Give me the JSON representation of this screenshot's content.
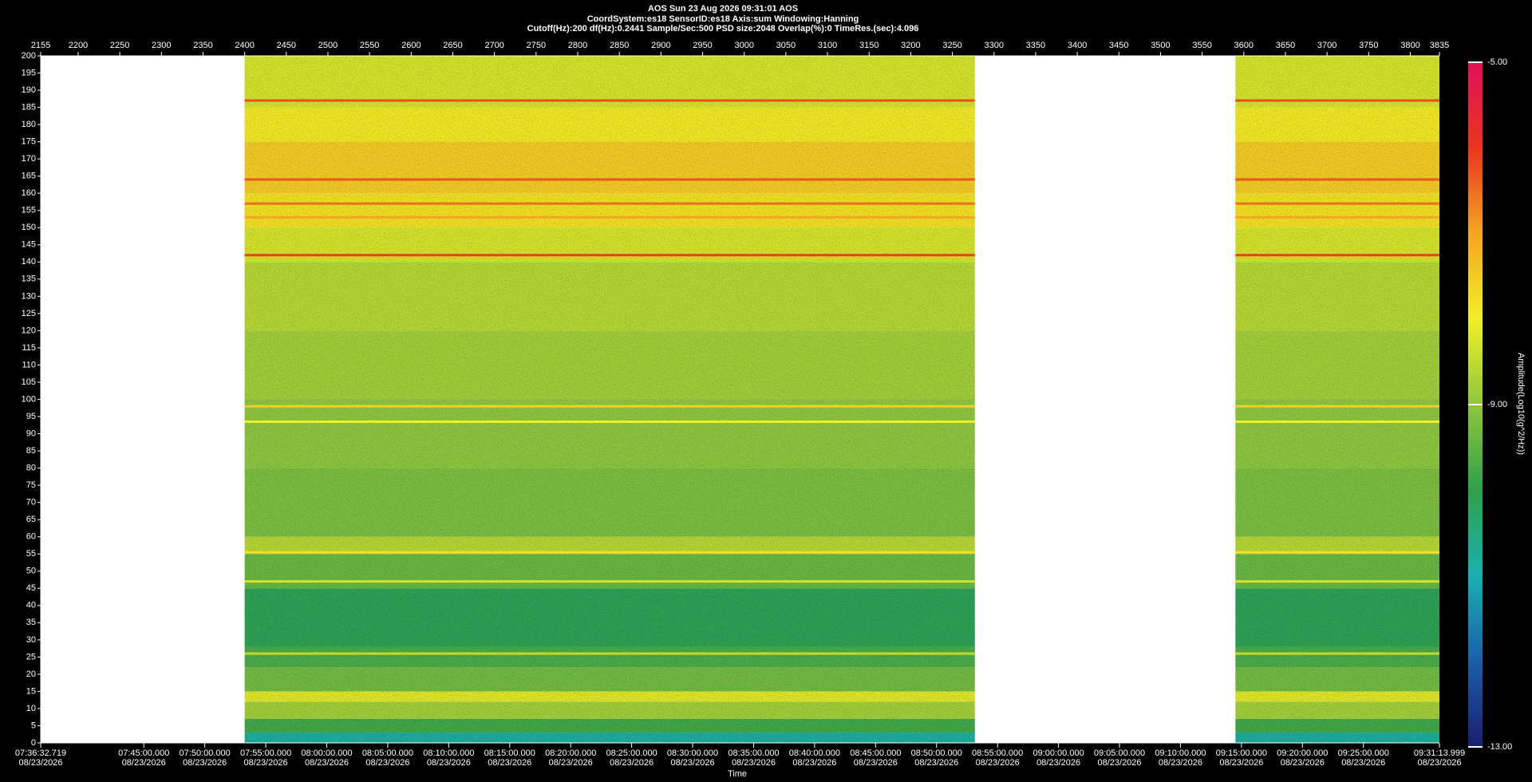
{
  "chart_data": {
    "type": "spectrogram",
    "title_lines": [
      "AOS  Sun 23 Aug 2026 09:31:01  AOS",
      "CoordSystem:es18   SensorID:es18   Axis:sum   Windowing:Hanning",
      "Cutoff(Hz):200     df(Hz):0.2441     Sample/Sec:500     PSD size:2048     Overlap(%):0     TimeRes.(sec):4.096"
    ],
    "xlabel": "Time",
    "colorbar_label": "Amplitude(Log10(g^2/Hz))",
    "xlim": [
      2155,
      3835
    ],
    "xticks": [
      2155,
      2200,
      2250,
      2300,
      2350,
      2400,
      2450,
      2500,
      2550,
      2600,
      2650,
      2700,
      2750,
      2800,
      2850,
      2900,
      2950,
      3000,
      3050,
      3100,
      3150,
      3200,
      3250,
      3300,
      3350,
      3400,
      3450,
      3500,
      3550,
      3600,
      3650,
      3700,
      3750,
      3800,
      3835
    ],
    "ylim": [
      0,
      200
    ],
    "yticks": [
      0,
      5,
      10,
      15,
      20,
      25,
      30,
      35,
      40,
      45,
      50,
      55,
      60,
      65,
      70,
      75,
      80,
      85,
      90,
      95,
      100,
      105,
      110,
      115,
      120,
      125,
      130,
      135,
      140,
      145,
      150,
      155,
      160,
      165,
      170,
      175,
      180,
      185,
      190,
      195,
      200
    ],
    "time_ticks": [
      {
        "value": 2155,
        "label": "07:36:32.719"
      },
      {
        "value": 2278.85,
        "label": "07:45:00.000"
      },
      {
        "value": 2352.09,
        "label": "07:50:00.000"
      },
      {
        "value": 2425.33,
        "label": "07:55:00.000"
      },
      {
        "value": 2498.58,
        "label": "08:00:00.000"
      },
      {
        "value": 2571.82,
        "label": "08:05:00.000"
      },
      {
        "value": 2645.06,
        "label": "08:10:00.000"
      },
      {
        "value": 2718.3,
        "label": "08:15:00.000"
      },
      {
        "value": 2791.54,
        "label": "08:20:00.000"
      },
      {
        "value": 2864.79,
        "label": "08:25:00.000"
      },
      {
        "value": 2938.03,
        "label": "08:30:00.000"
      },
      {
        "value": 3011.27,
        "label": "08:35:00.000"
      },
      {
        "value": 3084.51,
        "label": "08:40:00.000"
      },
      {
        "value": 3157.75,
        "label": "08:45:00.000"
      },
      {
        "value": 3230.99,
        "label": "08:50:00.000"
      },
      {
        "value": 3304.24,
        "label": "08:55:00.000"
      },
      {
        "value": 3377.48,
        "label": "09:00:00.000"
      },
      {
        "value": 3450.72,
        "label": "09:05:00.000"
      },
      {
        "value": 3523.96,
        "label": "09:10:00.000"
      },
      {
        "value": 3597.2,
        "label": "09:15:00.000"
      },
      {
        "value": 3670.45,
        "label": "09:20:00.000"
      },
      {
        "value": 3743.69,
        "label": "09:25:00.000"
      },
      {
        "value": 3835,
        "label": "09:31:13.999"
      }
    ],
    "time_tick_date": "08/23/2026",
    "segments": [
      [
        2400,
        3277
      ],
      [
        3590,
        3835
      ]
    ],
    "freq_edges": [
      0,
      3,
      7,
      12,
      15,
      22,
      28,
      45,
      55,
      60,
      80,
      100,
      120,
      140,
      150,
      160,
      175,
      185,
      200
    ],
    "levels": [
      -10.8,
      -9.8,
      -8.8,
      -8.2,
      -9.3,
      -9.7,
      -10.1,
      -9.4,
      -8.6,
      -9.2,
      -9.0,
      -8.8,
      -8.6,
      -8.3,
      -7.8,
      -7.5,
      -7.9,
      -8.3
    ],
    "lines": {
      "freqs": [
        187,
        164,
        157,
        153,
        142,
        98,
        93.5,
        55.5,
        47,
        26
      ],
      "levels": [
        -6.2,
        -6.3,
        -6.5,
        -7.0,
        -6.1,
        -7.6,
        -8.0,
        -7.8,
        -8.3,
        -8.5
      ]
    },
    "clim": [
      -13,
      -5
    ],
    "cticks": [
      {
        "value": -13,
        "label": "-13.00"
      },
      {
        "value": -9,
        "label": "-9.00"
      },
      {
        "value": -5,
        "label": "-5.00"
      }
    ],
    "colormap": [
      "#1b1f6e",
      "#1a5fa8",
      "#19b0b0",
      "#2fa04a",
      "#8ec63f",
      "#f2ef24",
      "#f3a623",
      "#e8351f",
      "#e0105a"
    ]
  }
}
